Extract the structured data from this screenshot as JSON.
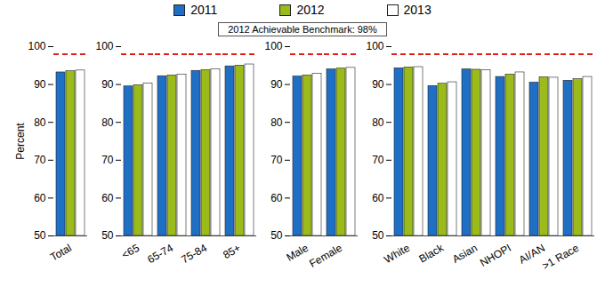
{
  "chart_data": {
    "type": "bar",
    "categories": [
      "Total",
      null,
      "<65",
      "65-74",
      "75-84",
      "85+",
      null,
      "Male",
      "Female",
      null,
      "White",
      "Black",
      "Asian",
      "NHOPI",
      "AI/AN",
      ">1 Race"
    ],
    "series": [
      {
        "name": "2011",
        "color": "#1f6fc5",
        "values": [
          93.2,
          null,
          89.5,
          92.2,
          93.6,
          94.8,
          null,
          92.1,
          94.0,
          null,
          94.3,
          89.6,
          94.0,
          92.0,
          90.5,
          91.0
        ]
      },
      {
        "name": "2012",
        "color": "#9bbb1b",
        "values": [
          93.5,
          null,
          89.8,
          92.4,
          93.8,
          95.0,
          null,
          92.4,
          94.2,
          null,
          94.5,
          90.2,
          93.9,
          92.6,
          91.9,
          91.4
        ]
      },
      {
        "name": "2013",
        "color": "#ffffff",
        "values": [
          93.7,
          null,
          90.3,
          92.6,
          94.0,
          95.3,
          null,
          92.8,
          94.4,
          null,
          94.6,
          90.6,
          93.8,
          93.2,
          91.8,
          92.0
        ]
      }
    ],
    "y_label": "Percent",
    "ylim": [
      50,
      100
    ],
    "yticks": [
      50,
      60,
      70,
      80,
      90,
      100
    ],
    "benchmark": {
      "value": 98,
      "label": "2012 Achievable Benchmark: 98%"
    },
    "legend": "top",
    "grid": false
  }
}
